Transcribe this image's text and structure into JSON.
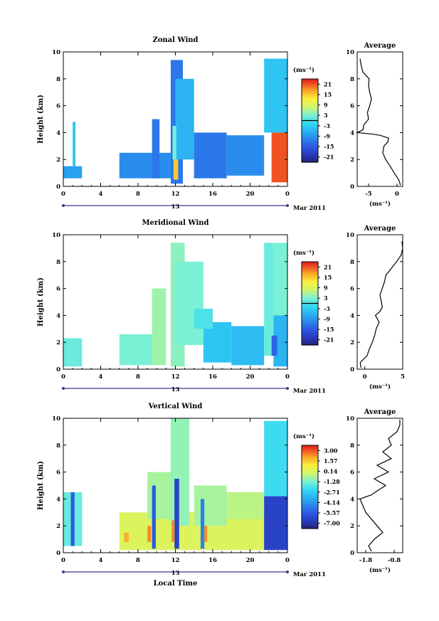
{
  "chart_data": [
    {
      "type": "heatmap",
      "title": "Zonal Wind",
      "ylabel": "Height (km)",
      "xlim": [
        0,
        24
      ],
      "ylim": [
        0,
        10
      ],
      "x_ticks": [
        "0",
        "4",
        "8",
        "12",
        "16",
        "20",
        "0"
      ],
      "y_ticks": [
        "0",
        "2",
        "4",
        "6",
        "8",
        "10"
      ],
      "date_label": "13",
      "month_label": "Mar 2011",
      "colorbar": {
        "unit": "(ms⁻¹)",
        "range": [
          -24,
          24
        ],
        "tick_labels": [
          "21",
          "15",
          "9",
          "3",
          "-3",
          "-9",
          "-15",
          "-21"
        ],
        "zero_line": true
      },
      "grid": false,
      "cells": [
        {
          "x0": 0,
          "x1": 2,
          "y0": 0.6,
          "y1": 1.5,
          "v": -8
        },
        {
          "x0": 1,
          "x1": 1.3,
          "y0": 1.5,
          "y1": 4.8,
          "v": -4
        },
        {
          "x0": 6,
          "x1": 12,
          "y0": 0.6,
          "y1": 2.5,
          "v": -10
        },
        {
          "x0": 9.5,
          "x1": 10.3,
          "y0": 0.6,
          "y1": 5.0,
          "v": -12
        },
        {
          "x0": 11.5,
          "x1": 12.8,
          "y0": 0.2,
          "y1": 9.4,
          "v": -12
        },
        {
          "x0": 12,
          "x1": 14,
          "y0": 2.0,
          "y1": 8.0,
          "v": -6
        },
        {
          "x0": 14,
          "x1": 17.5,
          "y0": 0.6,
          "y1": 4.0,
          "v": -12
        },
        {
          "x0": 17.5,
          "x1": 21.5,
          "y0": 0.8,
          "y1": 3.8,
          "v": -10
        },
        {
          "x0": 21.5,
          "x1": 24,
          "y0": 4.0,
          "y1": 9.5,
          "v": -4
        },
        {
          "x0": 22.3,
          "x1": 24,
          "y0": 0.3,
          "y1": 4.0,
          "v": 21
        },
        {
          "x0": 11.8,
          "x1": 12.3,
          "y0": 0.5,
          "y1": 2.0,
          "v": 15
        },
        {
          "x0": 11.7,
          "x1": 12.1,
          "y0": 2.0,
          "y1": 4.5,
          "v": 3
        }
      ],
      "average_profile": {
        "title": "Average",
        "xlabel": "(ms⁻¹)",
        "x_ticks": [
          "-5",
          "0"
        ],
        "xlim": [
          -7,
          1
        ],
        "heights": [
          0.1,
          0.5,
          1,
          1.5,
          2,
          2.5,
          3,
          3.3,
          3.6,
          3.8,
          3.9,
          4.0,
          4.2,
          4.6,
          5,
          5.5,
          6,
          6.5,
          7,
          7.5,
          8,
          8.5,
          9,
          9.5
        ],
        "values": [
          0.6,
          0.3,
          -0.5,
          -1.2,
          -2.0,
          -2.5,
          -2.3,
          -1.6,
          -1.5,
          -3.0,
          -4.5,
          -7.0,
          -6.0,
          -5.8,
          -5.0,
          -5.2,
          -4.8,
          -4.5,
          -4.8,
          -5.0,
          -4.9,
          -6.0,
          -6.3,
          -6.5
        ]
      }
    },
    {
      "type": "heatmap",
      "title": "Meridional Wind",
      "ylabel": "Height (km)",
      "xlim": [
        0,
        24
      ],
      "ylim": [
        0,
        10
      ],
      "x_ticks": [
        "0",
        "4",
        "8",
        "12",
        "16",
        "20",
        "0"
      ],
      "y_ticks": [
        "0",
        "2",
        "4",
        "6",
        "8",
        "10"
      ],
      "date_label": "13",
      "month_label": "Mar 2011",
      "colorbar": {
        "unit": "(ms⁻¹)",
        "range": [
          -24,
          24
        ],
        "tick_labels": [
          "21",
          "15",
          "9",
          "3",
          "-3",
          "-9",
          "-15",
          "-21"
        ],
        "zero_line": true
      },
      "grid": false,
      "cells": [
        {
          "x0": 0,
          "x1": 2,
          "y0": 0.2,
          "y1": 2.3,
          "v": 2
        },
        {
          "x0": 6,
          "x1": 10,
          "y0": 0.3,
          "y1": 2.6,
          "v": 3
        },
        {
          "x0": 9.5,
          "x1": 11,
          "y0": 0.3,
          "y1": 6.0,
          "v": 5
        },
        {
          "x0": 11.5,
          "x1": 13,
          "y0": 0.2,
          "y1": 9.4,
          "v": 4
        },
        {
          "x0": 12,
          "x1": 15,
          "y0": 1.8,
          "y1": 8.0,
          "v": 3
        },
        {
          "x0": 15,
          "x1": 18,
          "y0": 0.5,
          "y1": 3.5,
          "v": -4
        },
        {
          "x0": 18,
          "x1": 21.5,
          "y0": 0.3,
          "y1": 3.2,
          "v": -5
        },
        {
          "x0": 21.5,
          "x1": 22.5,
          "y0": 1.0,
          "y1": 9.4,
          "v": 2
        },
        {
          "x0": 22.5,
          "x1": 24,
          "y0": 4.0,
          "y1": 9.4,
          "v": 3
        },
        {
          "x0": 22.5,
          "x1": 24,
          "y0": 0.2,
          "y1": 4.0,
          "v": -6
        },
        {
          "x0": 22.3,
          "x1": 22.9,
          "y0": 1.0,
          "y1": 2.5,
          "v": -14
        },
        {
          "x0": 14,
          "x1": 16,
          "y0": 3.0,
          "y1": 4.5,
          "v": 0
        }
      ],
      "average_profile": {
        "title": "Average",
        "xlabel": "(ms⁻¹)",
        "x_ticks": [
          "0",
          "5"
        ],
        "xlim": [
          -1,
          5
        ],
        "heights": [
          0.1,
          0.5,
          1,
          1.5,
          2,
          2.5,
          3,
          3.5,
          4,
          4.3,
          4.6,
          5,
          5.5,
          6,
          6.5,
          7,
          7.5,
          8,
          8.5,
          9,
          9.5
        ],
        "values": [
          -0.5,
          -0.6,
          0.3,
          0.6,
          1.0,
          1.3,
          1.5,
          1.9,
          1.4,
          2.0,
          2.3,
          2.2,
          2.0,
          2.3,
          2.6,
          2.8,
          3.5,
          4.2,
          4.8,
          5.0,
          4.9
        ]
      }
    },
    {
      "type": "heatmap",
      "title": "Vertical Wind",
      "ylabel": "Height (km)",
      "xlabel": "Local Time",
      "xlim": [
        0,
        24
      ],
      "ylim": [
        0,
        10
      ],
      "x_ticks": [
        "0",
        "4",
        "8",
        "12",
        "16",
        "20",
        "0"
      ],
      "y_ticks": [
        "0",
        "2",
        "4",
        "6",
        "8",
        "10"
      ],
      "date_label": "13",
      "month_label": "Mar 2011",
      "colorbar": {
        "unit": "(ms⁻¹)",
        "range": [
          -8.5,
          4.5
        ],
        "tick_labels": [
          "3.00",
          "1.57",
          "0.14",
          "-1.28",
          "-2.71",
          "-4.14",
          "-5.57",
          "-7.00"
        ],
        "zero_line": false
      },
      "grid": false,
      "cells": [
        {
          "x0": 0,
          "x1": 2,
          "y0": 0.5,
          "y1": 4.5,
          "v": -1.5
        },
        {
          "x0": 0.8,
          "x1": 1.2,
          "y0": 0.5,
          "y1": 4.5,
          "v": -6
        },
        {
          "x0": 6,
          "x1": 22,
          "y0": 0.2,
          "y1": 3.0,
          "v": 0.5
        },
        {
          "x0": 9,
          "x1": 12,
          "y0": 2.5,
          "y1": 6.0,
          "v": -0.5
        },
        {
          "x0": 11.5,
          "x1": 13.5,
          "y0": 2.0,
          "y1": 10,
          "v": -0.8
        },
        {
          "x0": 14,
          "x1": 17.5,
          "y0": 2.0,
          "y1": 5.0,
          "v": -0.5
        },
        {
          "x0": 17.5,
          "x1": 21.5,
          "y0": 2.5,
          "y1": 4.5,
          "v": -0.2
        },
        {
          "x0": 21.5,
          "x1": 24,
          "y0": 4.2,
          "y1": 9.8,
          "v": -2.3
        },
        {
          "x0": 21.5,
          "x1": 24,
          "y0": 0.2,
          "y1": 4.2,
          "v": -7.0
        },
        {
          "x0": 9.5,
          "x1": 9.9,
          "y0": 0.3,
          "y1": 5.0,
          "v": -6
        },
        {
          "x0": 11.9,
          "x1": 12.4,
          "y0": 0.3,
          "y1": 5.5,
          "v": -7
        },
        {
          "x0": 14.7,
          "x1": 15.1,
          "y0": 0.3,
          "y1": 4.0,
          "v": -5
        },
        {
          "x0": 9.0,
          "x1": 9.4,
          "y0": 0.8,
          "y1": 2.0,
          "v": 3.0
        },
        {
          "x0": 11.6,
          "x1": 11.9,
          "y0": 0.8,
          "y1": 2.4,
          "v": 3.0
        },
        {
          "x0": 15.1,
          "x1": 15.4,
          "y0": 0.8,
          "y1": 2.0,
          "v": 3.0
        },
        {
          "x0": 6.5,
          "x1": 7.0,
          "y0": 0.8,
          "y1": 1.5,
          "v": 2.5
        }
      ],
      "average_profile": {
        "title": "Average",
        "xlabel": "(ms⁻¹)",
        "x_ticks": [
          "-1.8",
          "-0.8"
        ],
        "xlim": [
          -2.1,
          -0.5
        ],
        "heights": [
          0.1,
          0.5,
          1,
          1.5,
          2,
          2.5,
          3,
          3.5,
          4,
          4.3,
          4.6,
          5,
          5.5,
          6,
          6.5,
          7,
          7.5,
          8,
          8.5,
          9,
          9.5,
          9.9
        ],
        "values": [
          -1.6,
          -1.7,
          -1.5,
          -1.2,
          -1.4,
          -1.6,
          -1.8,
          -1.9,
          -2.0,
          -1.6,
          -1.4,
          -1.1,
          -1.5,
          -1.0,
          -1.4,
          -0.9,
          -1.2,
          -0.9,
          -1.0,
          -0.7,
          -0.6,
          -0.6
        ]
      }
    }
  ]
}
